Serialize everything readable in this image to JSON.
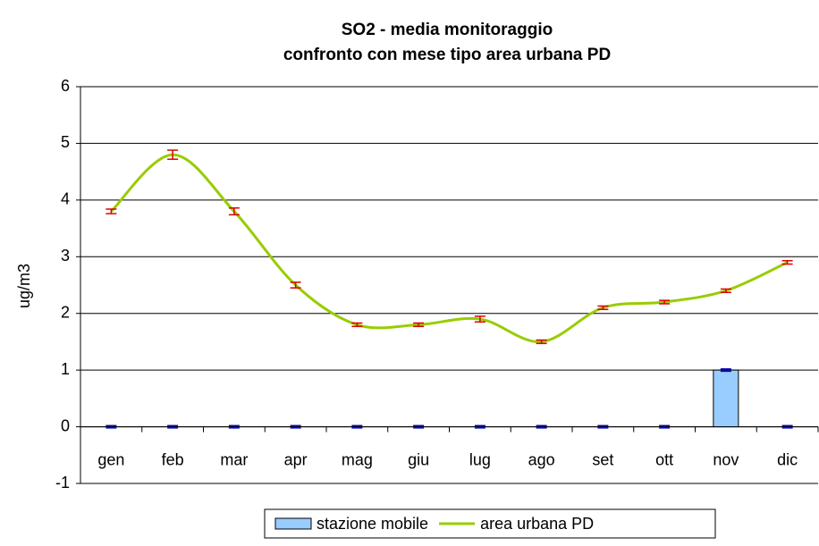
{
  "chart_data": {
    "type": "bar_line",
    "title": "SO2 - media monitoraggio",
    "subtitle": "confronto con mese tipo area urbana PD",
    "y_label": "ug/m3",
    "categories": [
      "gen",
      "feb",
      "mar",
      "apr",
      "mag",
      "giu",
      "lug",
      "ago",
      "set",
      "ott",
      "nov",
      "dic"
    ],
    "ylim": [
      -1,
      6
    ],
    "yticks": [
      -1,
      0,
      1,
      2,
      3,
      4,
      5,
      6
    ],
    "grid": true,
    "legend": "bottom",
    "series": [
      {
        "name": "stazione mobile",
        "type": "bar",
        "color": "#99ccff",
        "error_color": "#0000cc",
        "values": [
          0,
          0,
          0,
          0,
          0,
          0,
          0,
          0,
          0,
          0,
          1,
          0
        ],
        "errors": [
          0.02,
          0.02,
          0.02,
          0.02,
          0.02,
          0.02,
          0.02,
          0.02,
          0.02,
          0.02,
          0.02,
          0.02
        ]
      },
      {
        "name": "area urbana PD",
        "type": "line",
        "color": "#99cc00",
        "error_color": "#dd0000",
        "values": [
          3.8,
          4.8,
          3.8,
          2.5,
          1.8,
          1.8,
          1.9,
          1.5,
          2.1,
          2.2,
          2.4,
          2.9
        ],
        "errors": [
          0.04,
          0.08,
          0.06,
          0.05,
          0.03,
          0.03,
          0.05,
          0.03,
          0.03,
          0.03,
          0.03,
          0.03
        ]
      }
    ]
  }
}
